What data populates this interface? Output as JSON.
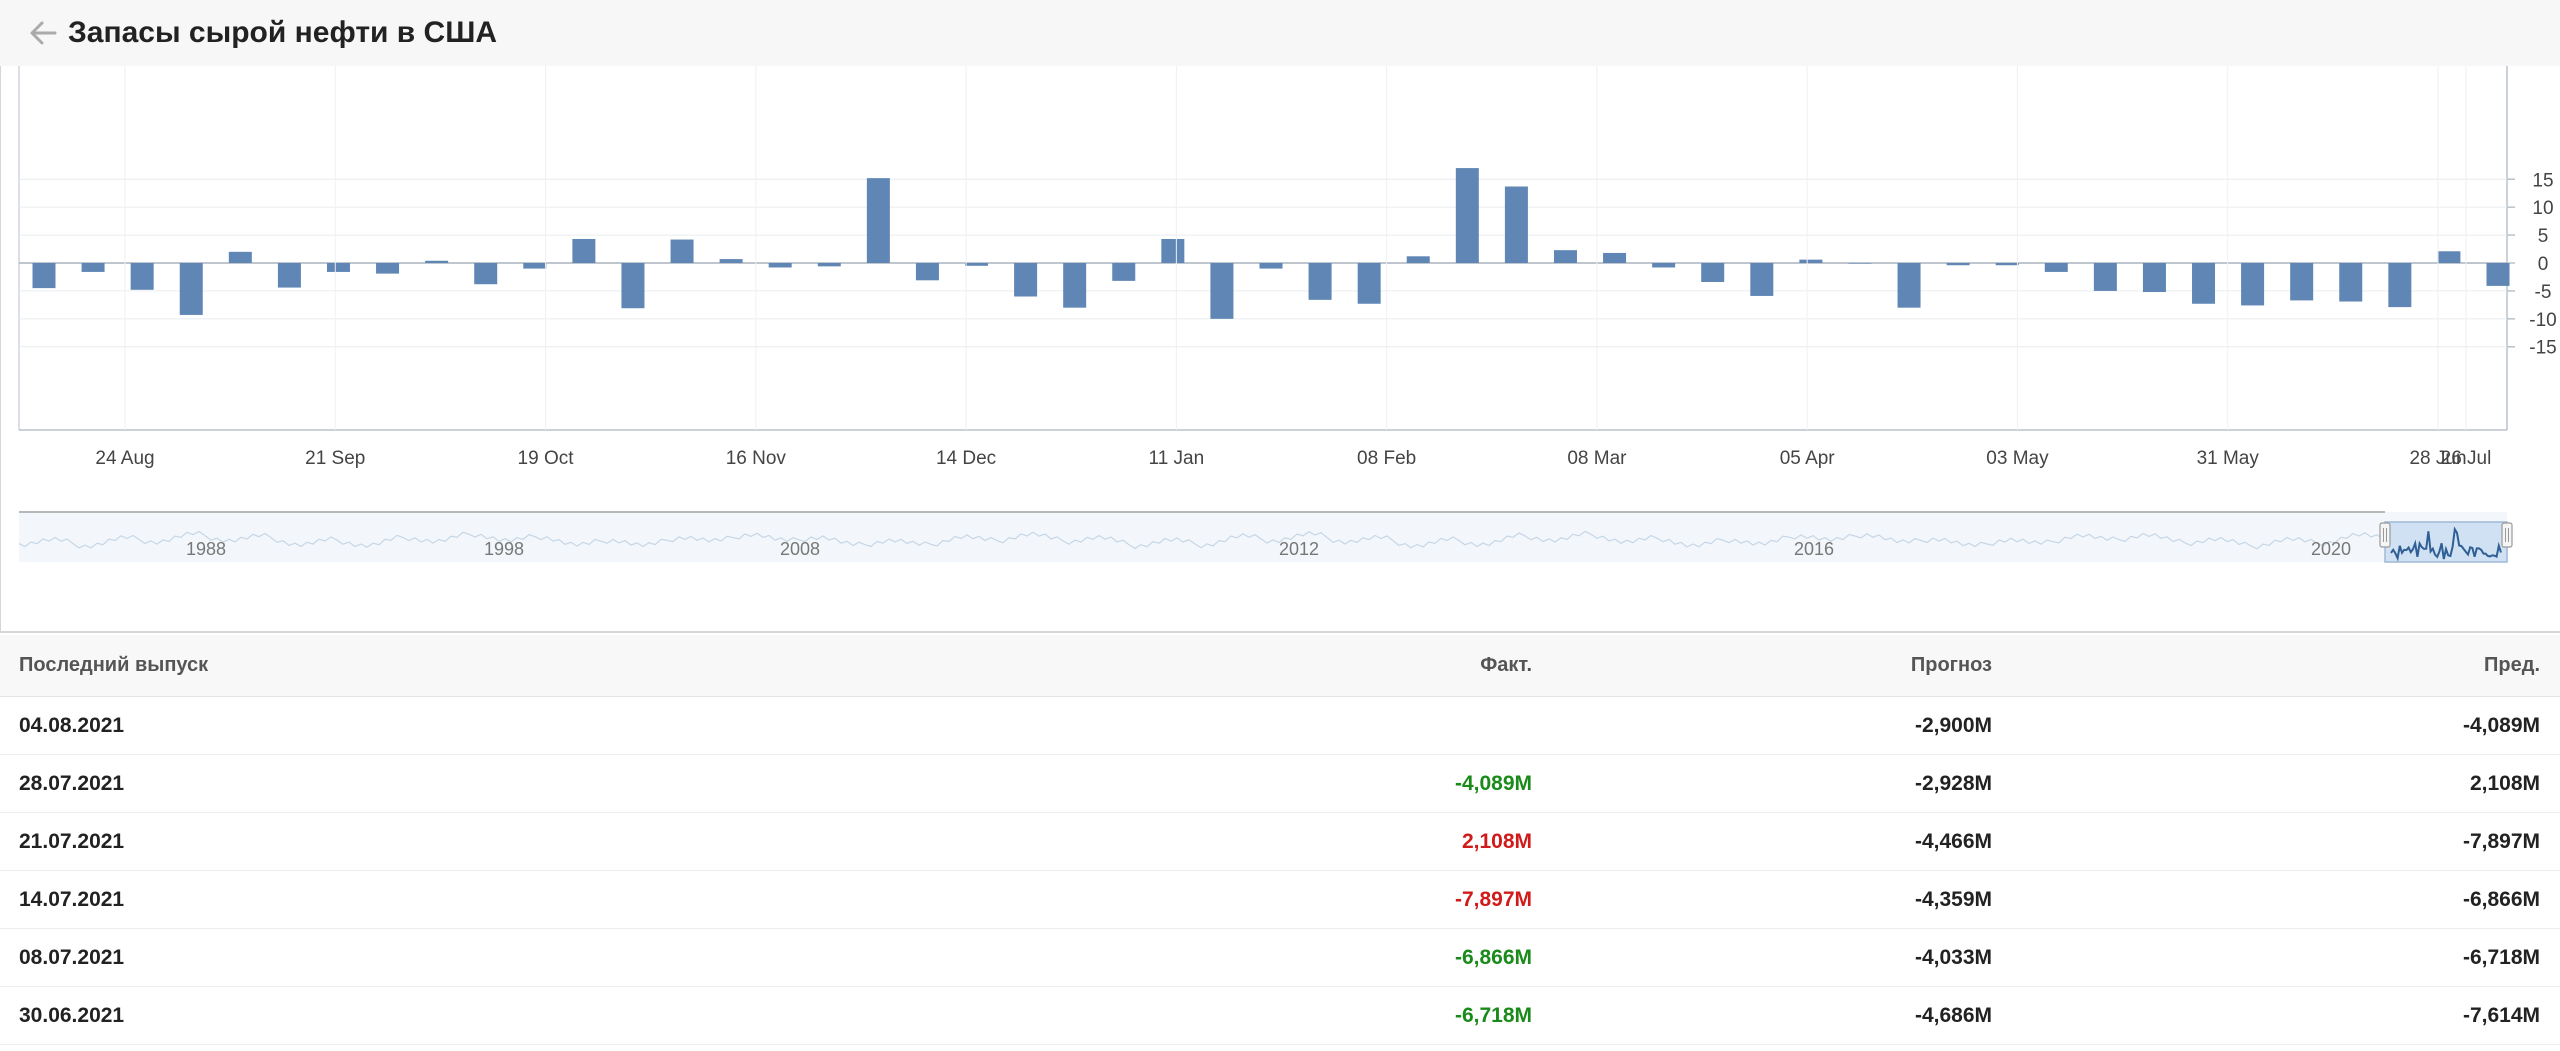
{
  "header": {
    "title": "Запасы сырой нефти в США"
  },
  "chart_data": {
    "type": "bar",
    "color": "#5f86b4",
    "values": [
      -4.5,
      -1.6,
      -4.8,
      -9.3,
      2.0,
      -4.4,
      -1.6,
      -1.9,
      0.4,
      -3.8,
      -1.0,
      4.3,
      -8.1,
      4.2,
      0.7,
      -0.8,
      -0.6,
      15.2,
      -3.1,
      -0.5,
      -6.0,
      -8.0,
      -3.2,
      4.3,
      -10.0,
      -1.0,
      -6.6,
      -7.3,
      1.2,
      17.0,
      13.7,
      2.3,
      1.8,
      -0.8,
      -3.4,
      -5.9,
      0.6,
      0.0,
      -8.0,
      -0.4,
      -0.4,
      -1.6,
      -5.0,
      -5.2,
      -7.3,
      -7.6,
      -6.7,
      -6.9,
      -7.9,
      2.1,
      -4.1
    ],
    "x_ticks": [
      "24 Aug",
      "21 Sep",
      "19 Oct",
      "16 Nov",
      "14 Dec",
      "11 Jan",
      "08 Feb",
      "08 Mar",
      "05 Apr",
      "03 May",
      "31 May",
      "28 Jun",
      "26 Jul"
    ],
    "y_ticks": [
      15,
      10,
      5,
      0,
      -5,
      -10,
      -15
    ],
    "ylim": [
      -15,
      17
    ],
    "navigator_labels": [
      "1988",
      "1998",
      "2008",
      "2012",
      "2016",
      "2020"
    ]
  },
  "table": {
    "headers": {
      "date": "Последний выпуск",
      "actual": "Факт.",
      "forecast": "Прогноз",
      "previous": "Пред."
    },
    "rows": [
      {
        "date": "04.08.2021",
        "actual": "",
        "forecast": "-2,900M",
        "previous": "-4,089M",
        "color": ""
      },
      {
        "date": "28.07.2021",
        "actual": "-4,089M",
        "forecast": "-2,928M",
        "previous": "2,108M",
        "color": "green"
      },
      {
        "date": "21.07.2021",
        "actual": "2,108M",
        "forecast": "-4,466M",
        "previous": "-7,897M",
        "color": "red"
      },
      {
        "date": "14.07.2021",
        "actual": "-7,897M",
        "forecast": "-4,359M",
        "previous": "-6,866M",
        "color": "red"
      },
      {
        "date": "08.07.2021",
        "actual": "-6,866M",
        "forecast": "-4,033M",
        "previous": "-6,718M",
        "color": "green"
      },
      {
        "date": "30.06.2021",
        "actual": "-6,718M",
        "forecast": "-4,686M",
        "previous": "-7,614M",
        "color": "green"
      }
    ]
  }
}
